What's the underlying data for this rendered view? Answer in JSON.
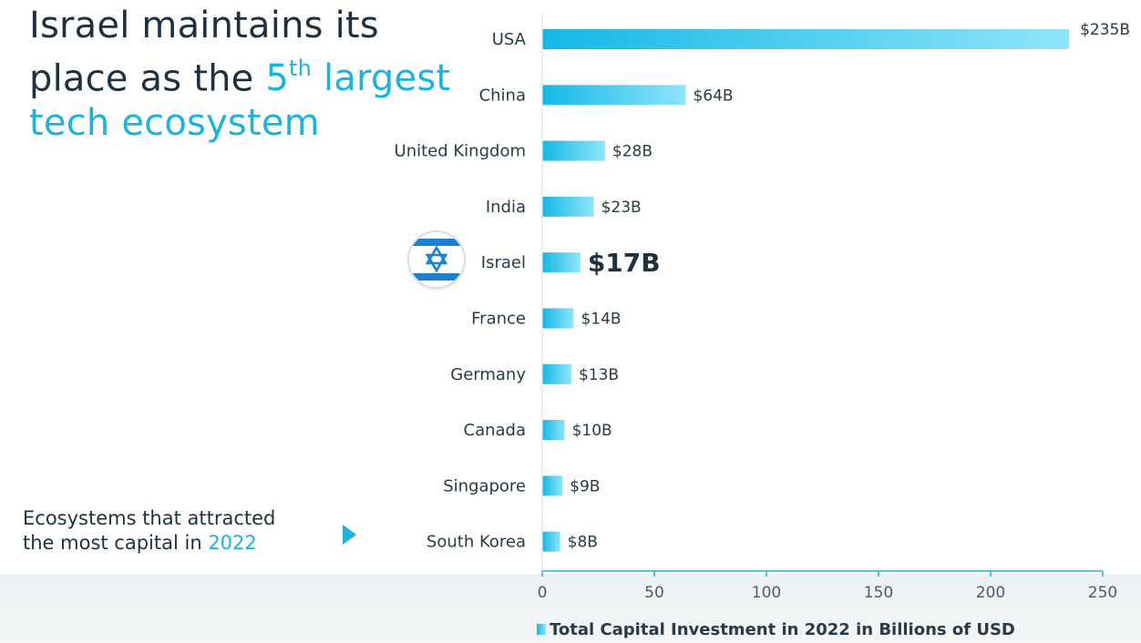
{
  "headline": {
    "line1": "Israel maintains its",
    "line2_prefix": "place as the ",
    "ordinal_number": "5",
    "ordinal_suffix": "th",
    "line2_accent": " largest",
    "line3": "tech ecosystem"
  },
  "caption": {
    "line1": "Ecosystems that attracted",
    "line2_prefix": "the most capital in ",
    "year": "2022"
  },
  "colors": {
    "accent": "#1eb2dd",
    "bar_start": "#14b8e6",
    "bar_end": "#8fe5fa",
    "axis": "#1eb2dd",
    "text_dark": "#1f3140"
  },
  "icons": {
    "flag": "israel-flag-icon",
    "arrow": "play-arrow-icon"
  },
  "chart_data": {
    "type": "bar",
    "orientation": "horizontal",
    "categories": [
      "USA",
      "China",
      "United Kingdom",
      "India",
      "Israel",
      "France",
      "Germany",
      "Canada",
      "Singapore",
      "South Korea"
    ],
    "series": [
      {
        "name": "Total Capital Investment in 2022 in Billions of USD",
        "values": [
          235,
          64,
          28,
          23,
          17,
          14,
          13,
          10,
          9,
          8
        ]
      }
    ],
    "data_labels": [
      "$235B",
      "$64B",
      "$28B",
      "$23B",
      "$17B",
      "$14B",
      "$13B",
      "$10B",
      "$9B",
      "$8B"
    ],
    "highlight_category": "Israel",
    "xlim": [
      0,
      250
    ],
    "xticks": [
      0,
      50,
      100,
      150,
      200,
      250
    ],
    "grid": false,
    "legend_position": "bottom"
  }
}
